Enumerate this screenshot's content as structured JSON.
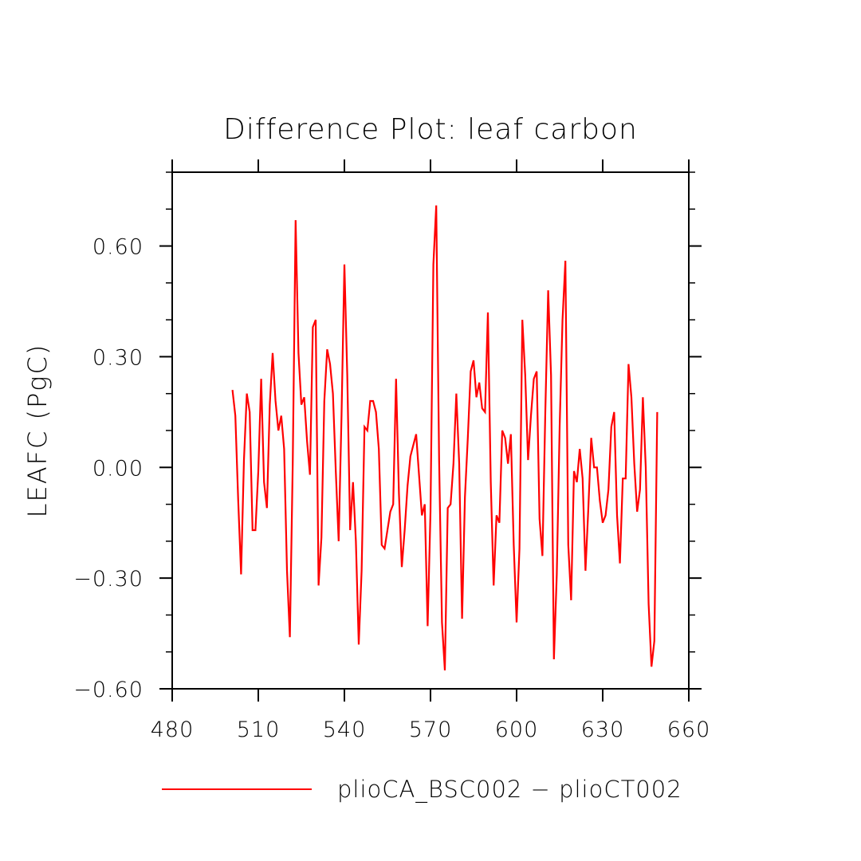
{
  "chart_data": {
    "type": "line",
    "title": "Difference Plot: leaf carbon",
    "xlabel": "",
    "ylabel": "LEAFC  (PgC)",
    "xlim": [
      480,
      660
    ],
    "ylim": [
      -0.6,
      0.8
    ],
    "x_ticks": [
      480,
      510,
      540,
      570,
      600,
      630,
      660
    ],
    "x_tick_labels": [
      "480",
      "510",
      "540",
      "570",
      "600",
      "630",
      "660"
    ],
    "y_ticks": [
      -0.6,
      -0.3,
      0.0,
      0.3,
      0.6
    ],
    "y_tick_labels": [
      "−0.60",
      "−0.30",
      "0.00",
      "0.30",
      "0.60"
    ],
    "y_minor_step": 0.1,
    "x_minor_step": 10,
    "grid": false,
    "legend_position": "bottom",
    "series": [
      {
        "name": "plioCA_BSC002 − plioCT002",
        "color": "#ff0000",
        "x_start": 501,
        "x_step": 1,
        "values": [
          0.21,
          0.14,
          -0.09,
          -0.29,
          0.02,
          0.2,
          0.15,
          -0.17,
          -0.17,
          -0.01,
          0.24,
          -0.04,
          -0.11,
          0.17,
          0.31,
          0.18,
          0.1,
          0.14,
          0.05,
          -0.28,
          -0.46,
          0.01,
          0.67,
          0.31,
          0.17,
          0.19,
          0.07,
          -0.02,
          0.38,
          0.4,
          -0.32,
          -0.19,
          0.18,
          0.32,
          0.28,
          0.2,
          -0.01,
          -0.2,
          0.14,
          0.55,
          0.25,
          -0.17,
          -0.04,
          -0.2,
          -0.48,
          -0.28,
          0.11,
          0.1,
          0.18,
          0.18,
          0.15,
          0.05,
          -0.21,
          -0.22,
          -0.17,
          -0.12,
          -0.1,
          0.24,
          -0.07,
          -0.27,
          -0.17,
          -0.05,
          0.03,
          0.06,
          0.09,
          -0.02,
          -0.13,
          -0.1,
          -0.43,
          -0.12,
          0.55,
          0.71,
          0.02,
          -0.42,
          -0.55,
          -0.11,
          -0.1,
          0.01,
          0.2,
          0.01,
          -0.41,
          -0.08,
          0.08,
          0.26,
          0.29,
          0.19,
          0.23,
          0.16,
          0.15,
          0.42,
          -0.04,
          -0.32,
          -0.13,
          -0.15,
          0.1,
          0.08,
          0.01,
          0.09,
          -0.21,
          -0.42,
          -0.22,
          0.4,
          0.25,
          0.02,
          0.14,
          0.24,
          0.26,
          -0.14,
          -0.24,
          0.15,
          0.48,
          0.25,
          -0.52,
          -0.29,
          0.11,
          0.4,
          0.56,
          -0.21,
          -0.36,
          -0.01,
          -0.04,
          0.05,
          -0.03,
          -0.28,
          -0.11,
          0.08,
          0.0,
          0.0,
          -0.09,
          -0.15,
          -0.13,
          -0.06,
          0.11,
          0.15,
          -0.13,
          -0.26,
          -0.03,
          -0.03,
          0.28,
          0.19,
          0.01,
          -0.12,
          -0.06,
          0.19,
          0.0,
          -0.37,
          -0.54,
          -0.47,
          0.15
        ]
      }
    ]
  }
}
